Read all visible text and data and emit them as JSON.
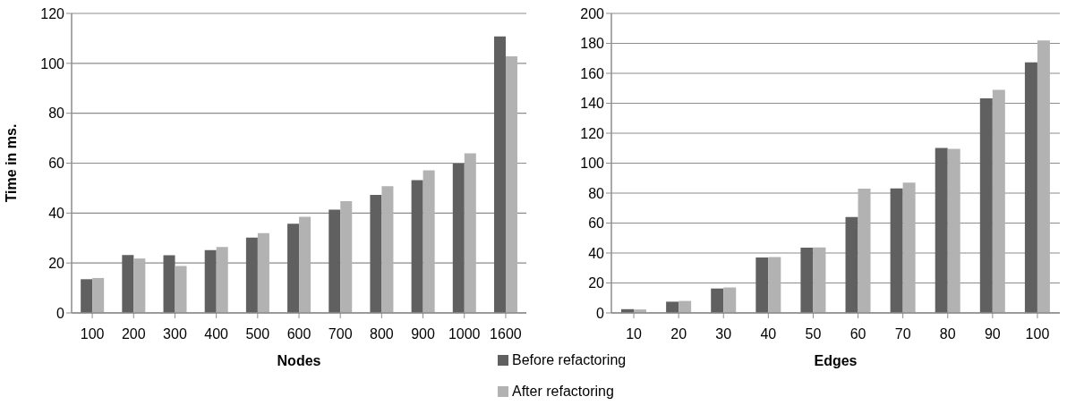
{
  "chart_data": [
    {
      "type": "bar",
      "xlabel": "Nodes",
      "ylabel": "Time in ms.",
      "categories": [
        "100",
        "200",
        "300",
        "400",
        "500",
        "600",
        "700",
        "800",
        "900",
        "1000",
        "1600"
      ],
      "series": [
        {
          "name": "Before refactoring",
          "color": "#606060",
          "values": [
            13.5,
            23.2,
            23.1,
            25.2,
            30.2,
            35.7,
            41.4,
            47.3,
            53.2,
            59.8,
            110.8
          ]
        },
        {
          "name": "After refactoring",
          "color": "#b2b2b2",
          "values": [
            14,
            21.8,
            18.8,
            26.4,
            32,
            38.5,
            44.8,
            50.8,
            57.1,
            63.9,
            102.8
          ]
        }
      ],
      "ylim": [
        0,
        120
      ],
      "yticks": [
        0,
        20,
        40,
        60,
        80,
        100,
        120
      ],
      "grid": "y",
      "legend": "bottom right"
    },
    {
      "type": "bar",
      "xlabel": "Edges",
      "categories": [
        "10",
        "20",
        "30",
        "40",
        "50",
        "60",
        "70",
        "80",
        "90",
        "100"
      ],
      "series": [
        {
          "color": "#606060",
          "values": [
            2.5,
            7.5,
            16.3,
            37,
            43.6,
            64,
            83.2,
            110.2,
            143.3,
            167.3
          ]
        },
        {
          "color": "#b2b2b2",
          "values": [
            2.3,
            8,
            17,
            37.3,
            43.8,
            83,
            87,
            109.5,
            149,
            182
          ]
        }
      ],
      "ylim": [
        0,
        200
      ],
      "yticks": [
        0,
        20,
        40,
        60,
        80,
        100,
        120,
        140,
        160,
        180,
        200
      ],
      "grid": "y"
    }
  ]
}
